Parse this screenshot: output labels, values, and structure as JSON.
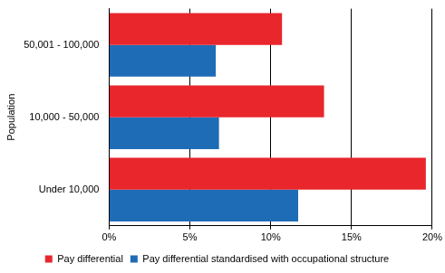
{
  "chart_data": {
    "type": "bar",
    "orientation": "horizontal",
    "y_label": "Population",
    "categories": [
      "50,001 - 100,000",
      "10,000 - 50,000",
      "Under 10,000"
    ],
    "series": [
      {
        "name": "Pay differential",
        "color": "#e8262c",
        "values": [
          10.7,
          13.3,
          19.6
        ]
      },
      {
        "name": "Pay differential standardised with occupational structure",
        "color": "#1f6cb6",
        "values": [
          6.6,
          6.8,
          11.7
        ]
      }
    ],
    "xlim": [
      0,
      20
    ],
    "xticks": [
      {
        "value": 0,
        "label": "0%"
      },
      {
        "value": 5,
        "label": "5%"
      },
      {
        "value": 10,
        "label": "10%"
      },
      {
        "value": 15,
        "label": "15%"
      },
      {
        "value": 20,
        "label": "20%"
      }
    ],
    "grid": true,
    "legend": "bottom"
  }
}
